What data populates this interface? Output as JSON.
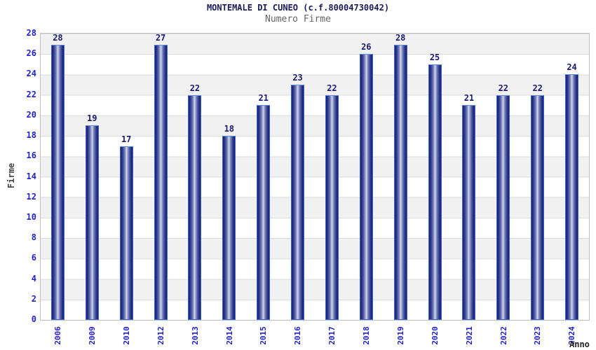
{
  "chart_data": {
    "type": "bar",
    "title": "MONTEMALE DI CUNEO (c.f.80004730042)",
    "subtitle": "Numero Firme",
    "xlabel": "Anno",
    "ylabel": "Firme",
    "categories": [
      "2006",
      "2009",
      "2010",
      "2012",
      "2013",
      "2014",
      "2015",
      "2016",
      "2017",
      "2018",
      "2019",
      "2020",
      "2021",
      "2022",
      "2023",
      "2024"
    ],
    "values": [
      28,
      19,
      17,
      27,
      22,
      18,
      21,
      23,
      22,
      26,
      28,
      25,
      21,
      22,
      22,
      24
    ],
    "ylim": [
      0,
      28
    ],
    "ytick_step": 2,
    "yticks": [
      0,
      2,
      4,
      6,
      8,
      10,
      12,
      14,
      16,
      18,
      20,
      22,
      24,
      26,
      28
    ],
    "grid": "alternating horizontal bands every 2 units, gray/white",
    "legend": "none",
    "colors": {
      "bar_dark": "#1d2473",
      "bar_light": "#d6dcf0",
      "bar_border": "#3c63cf",
      "value_label": "#191970",
      "tick_label": "#2222cc",
      "title": "#1a1a58",
      "subtitle": "#666666",
      "axis_title": "#444444",
      "band_gray": "#f1f1f1",
      "plot_border": "#c0c0c0"
    }
  }
}
